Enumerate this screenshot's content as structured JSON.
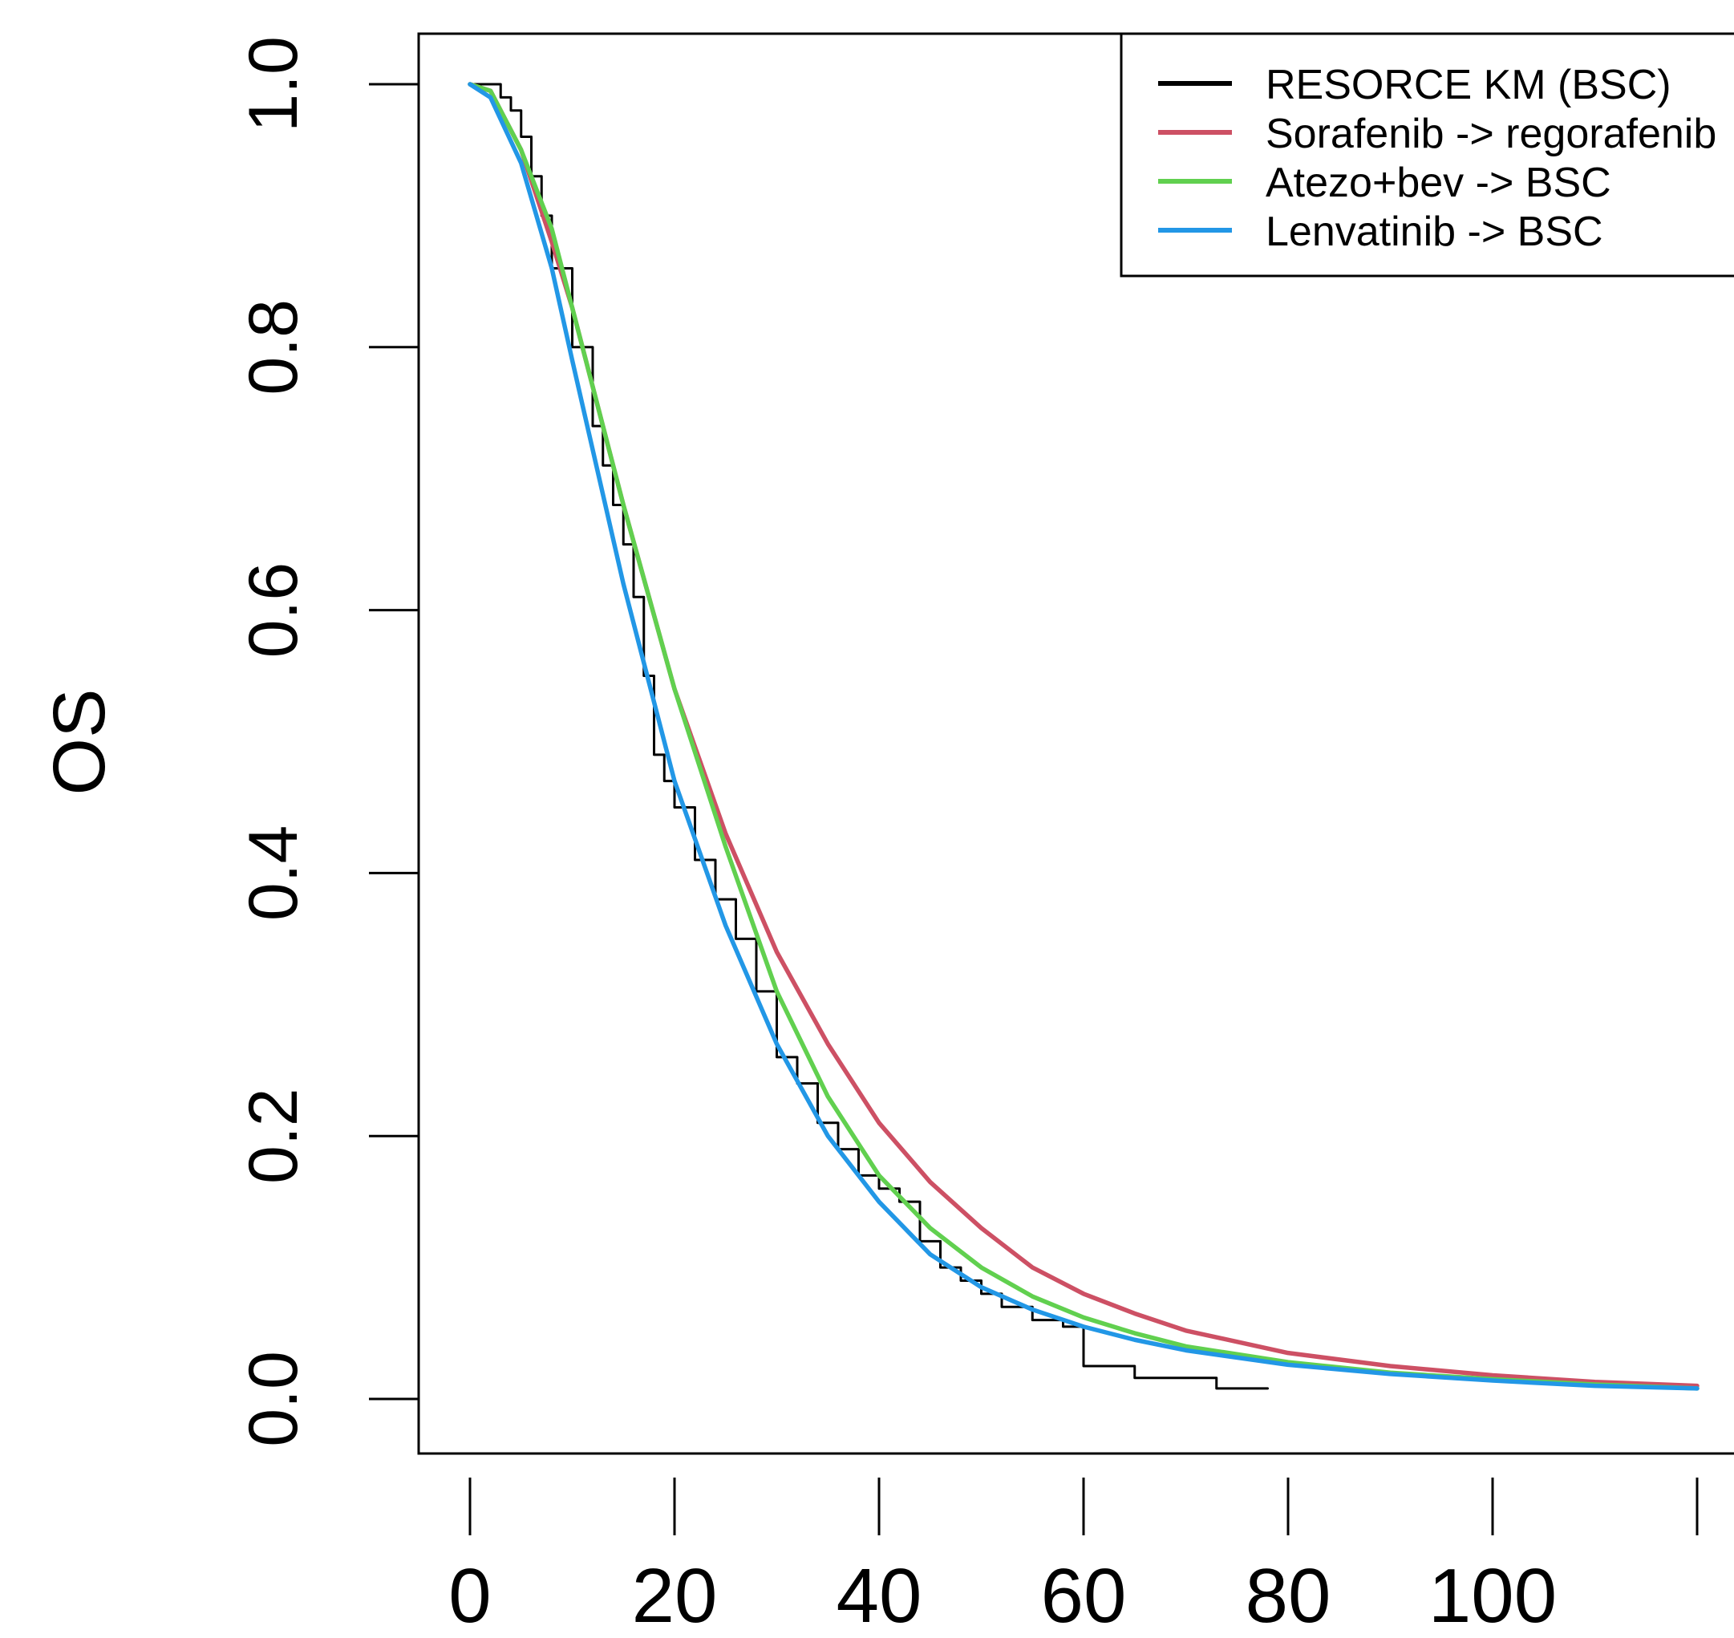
{
  "chart_data": {
    "type": "line",
    "title": "",
    "xlabel": "",
    "ylabel": "OS",
    "xlim": [
      0,
      120
    ],
    "ylim": [
      0,
      1
    ],
    "xticks": [
      0,
      20,
      40,
      60,
      80,
      100,
      120
    ],
    "xtick_labels": [
      "0",
      "20",
      "40",
      "60",
      "80",
      "100",
      ""
    ],
    "yticks": [
      0,
      0.2,
      0.4,
      0.6,
      0.8,
      1
    ],
    "ytick_labels": [
      "0.0",
      "0.2",
      "0.4",
      "0.6",
      "0.8",
      "1.0"
    ],
    "grid": false,
    "legend_position": "top-right",
    "series": [
      {
        "name": "RESORCE KM (BSC)",
        "color": "#000000",
        "style": "step",
        "x": [
          0,
          3,
          4,
          5,
          6,
          7,
          8,
          10,
          12,
          13,
          14,
          15,
          16,
          17,
          18,
          19,
          20,
          22,
          24,
          26,
          28,
          30,
          32,
          34,
          36,
          38,
          40,
          42,
          44,
          46,
          48,
          50,
          52,
          55,
          58,
          60,
          65,
          73,
          78
        ],
        "y": [
          1.0,
          0.99,
          0.98,
          0.96,
          0.93,
          0.9,
          0.86,
          0.8,
          0.74,
          0.71,
          0.68,
          0.65,
          0.61,
          0.55,
          0.49,
          0.47,
          0.45,
          0.41,
          0.38,
          0.35,
          0.31,
          0.26,
          0.24,
          0.21,
          0.19,
          0.17,
          0.16,
          0.15,
          0.12,
          0.1,
          0.09,
          0.08,
          0.07,
          0.06,
          0.055,
          0.025,
          0.016,
          0.008,
          0.008
        ]
      },
      {
        "name": "Sorafenib -> regorafenib",
        "color": "#cd5064",
        "style": "line",
        "x": [
          0,
          2,
          5,
          8,
          10,
          15,
          20,
          25,
          30,
          35,
          40,
          45,
          50,
          55,
          60,
          65,
          70,
          80,
          90,
          100,
          110,
          120
        ],
        "y": [
          1.0,
          0.995,
          0.95,
          0.88,
          0.83,
          0.68,
          0.54,
          0.43,
          0.34,
          0.27,
          0.21,
          0.165,
          0.13,
          0.1,
          0.08,
          0.065,
          0.052,
          0.035,
          0.025,
          0.018,
          0.013,
          0.01
        ]
      },
      {
        "name": "Atezo+bev -> BSC",
        "color": "#61d04f",
        "style": "line",
        "x": [
          0,
          2,
          5,
          8,
          10,
          15,
          20,
          25,
          30,
          35,
          40,
          45,
          50,
          55,
          60,
          65,
          70,
          80,
          90,
          100,
          110,
          120
        ],
        "y": [
          1.0,
          0.995,
          0.95,
          0.89,
          0.83,
          0.68,
          0.54,
          0.42,
          0.31,
          0.23,
          0.17,
          0.13,
          0.1,
          0.078,
          0.062,
          0.05,
          0.04,
          0.028,
          0.02,
          0.015,
          0.011,
          0.008
        ]
      },
      {
        "name": "Lenvatinib -> BSC",
        "color": "#2297e6",
        "style": "line",
        "x": [
          0,
          2,
          5,
          8,
          10,
          15,
          20,
          25,
          30,
          35,
          40,
          45,
          50,
          55,
          60,
          65,
          70,
          80,
          90,
          100,
          110,
          120
        ],
        "y": [
          1.0,
          0.99,
          0.94,
          0.86,
          0.79,
          0.62,
          0.47,
          0.36,
          0.27,
          0.2,
          0.15,
          0.11,
          0.085,
          0.068,
          0.055,
          0.045,
          0.037,
          0.026,
          0.019,
          0.014,
          0.01,
          0.008
        ]
      }
    ]
  }
}
